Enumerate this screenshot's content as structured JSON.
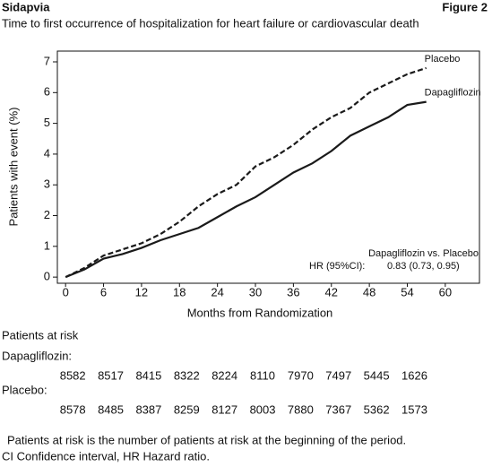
{
  "header": {
    "title": "Sidapvia",
    "figure": "Figure 2"
  },
  "chart_data": {
    "type": "line",
    "title": "Time to first occurrence of hospitalization for heart failure or cardiovascular death",
    "x_label": "Months from Randomization",
    "y_label": "Patients with event (%)",
    "x": [
      0,
      3,
      6,
      9,
      12,
      15,
      18,
      21,
      24,
      27,
      30,
      33,
      36,
      39,
      42,
      45,
      48,
      51,
      54,
      57
    ],
    "series": [
      {
        "name": "Placebo",
        "color": "#1a1a1a",
        "line_style": "dashed",
        "values": [
          0,
          0.3,
          0.7,
          0.9,
          1.1,
          1.4,
          1.8,
          2.3,
          2.7,
          3.0,
          3.6,
          3.9,
          4.3,
          4.8,
          5.2,
          5.5,
          6.0,
          6.3,
          6.6,
          6.8
        ]
      },
      {
        "name": "Dapagliflozin",
        "color": "#1a1a1a",
        "line_style": "solid",
        "values": [
          0,
          0.25,
          0.6,
          0.75,
          0.95,
          1.2,
          1.4,
          1.6,
          1.95,
          2.3,
          2.6,
          3.0,
          3.4,
          3.7,
          4.1,
          4.6,
          4.9,
          5.2,
          5.6,
          5.7
        ]
      }
    ],
    "xlim": [
      -1.3,
      65.4
    ],
    "ylim": [
      -0.2,
      7.35
    ],
    "xticks": [
      0,
      6,
      12,
      18,
      24,
      30,
      36,
      42,
      48,
      54,
      60
    ],
    "yticks": [
      0,
      1,
      2,
      3,
      4,
      5,
      6,
      7
    ],
    "annotations": [
      "Dapagliflozin vs. Placebo",
      "HR (95%CI):",
      "0.83 (0.73, 0.95)"
    ]
  },
  "risk_table": {
    "title": "Patients at risk",
    "rows": [
      {
        "label": "Dapagliflozin:",
        "values": [
          8582,
          8517,
          8415,
          8322,
          8224,
          8110,
          7970,
          7497,
          5445,
          1626
        ]
      },
      {
        "label": "Placebo:",
        "values": [
          8578,
          8485,
          8387,
          8259,
          8127,
          8003,
          7880,
          7367,
          5362,
          1573
        ]
      }
    ]
  },
  "footnotes": [
    "Patients at risk is the number of patients at risk at the beginning of the period.",
    "CI Confidence interval, HR Hazard ratio."
  ]
}
